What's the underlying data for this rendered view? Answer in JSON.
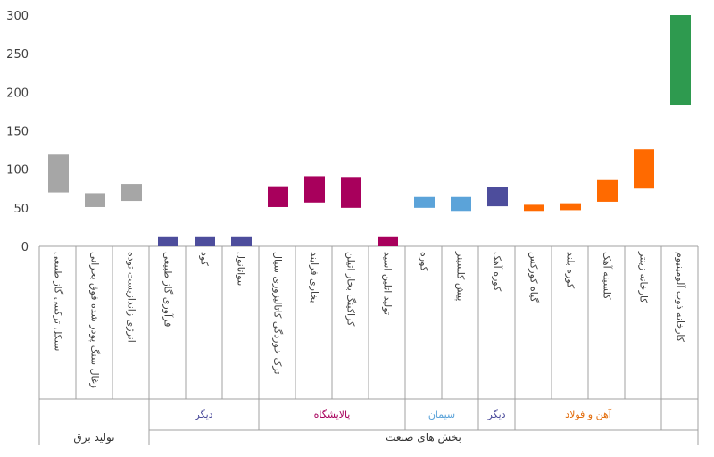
{
  "chart_data": {
    "type": "bar",
    "subtype": "floating-range",
    "title": "",
    "xlabel": "",
    "ylabel": "",
    "ylim": [
      0,
      300
    ],
    "yticks": [
      0,
      50,
      100,
      150,
      200,
      250,
      300
    ],
    "grid": false,
    "legend": "none",
    "categories": [
      {
        "label": "سیکل ترکیبی گاز طبیعی",
        "low": 70,
        "high": 119,
        "color": "#a6a6a6"
      },
      {
        "label": "زغال سنگ پودر شده فوق بحرانی",
        "low": 51,
        "high": 69,
        "color": "#a6a6a6"
      },
      {
        "label": "انرژی زاندازیست توده",
        "low": 59,
        "high": 81,
        "color": "#a6a6a6"
      },
      {
        "label": "فرآوری گاز طبیعی",
        "low": 0,
        "high": 13,
        "color": "#4d4d9c"
      },
      {
        "label": "کود",
        "low": 0,
        "high": 13,
        "color": "#4d4d9c"
      },
      {
        "label": "بیواتانول",
        "low": 0,
        "high": 13,
        "color": "#4d4d9c"
      },
      {
        "label": "ترک خوردگی کاتالیزوری سیال",
        "low": 51,
        "high": 78,
        "color": "#a8005c"
      },
      {
        "label": "بخاری فرایند",
        "low": 57,
        "high": 91,
        "color": "#a8005c"
      },
      {
        "label": "کراکینگ بخار اتیلن",
        "low": 50,
        "high": 90,
        "color": "#a8005c"
      },
      {
        "label": "تولید اتلین اسید",
        "low": 0,
        "high": 13,
        "color": "#a8005c"
      },
      {
        "label": "کوره",
        "low": 50,
        "high": 64,
        "color": "#5ba3d9"
      },
      {
        "label": "پیش کلسینر",
        "low": 46,
        "high": 64,
        "color": "#5ba3d9"
      },
      {
        "label": "کوره آهک",
        "low": 52,
        "high": 77,
        "color": "#4d4d9c"
      },
      {
        "label": "گیاه کورکس",
        "low": 46,
        "high": 54,
        "color": "#ff6a00"
      },
      {
        "label": "کوره بلند",
        "low": 47,
        "high": 56,
        "color": "#ff6a00"
      },
      {
        "label": "کلسینه آهک",
        "low": 58,
        "high": 86,
        "color": "#ff6a00"
      },
      {
        "label": "کارخانه زینتر",
        "low": 75,
        "high": 126,
        "color": "#ff6a00"
      },
      {
        "label": "کارخانه ذوب آلومینیوم",
        "low": 183,
        "high": 300,
        "color": "#2e9a4f"
      }
    ],
    "groups": [
      {
        "label": "دیگر",
        "start": 3,
        "end": 5,
        "color": "#4d4d9c"
      },
      {
        "label": "پالایشگاه",
        "start": 6,
        "end": 9,
        "color": "#a8005c"
      },
      {
        "label": "سیمان",
        "start": 10,
        "end": 11,
        "color": "#5ba3d9"
      },
      {
        "label": "دیگر",
        "start": 12,
        "end": 12,
        "color": "#4d4d9c"
      },
      {
        "label": "آهن و فولاد",
        "start": 13,
        "end": 16,
        "color": "#e36c0a"
      }
    ],
    "sectors": [
      {
        "label": "تولید برق",
        "start": 0,
        "end": 2,
        "color": "#333333"
      },
      {
        "label": "بخش های صنعت",
        "start": 3,
        "end": 17,
        "color": "#333333"
      }
    ]
  }
}
